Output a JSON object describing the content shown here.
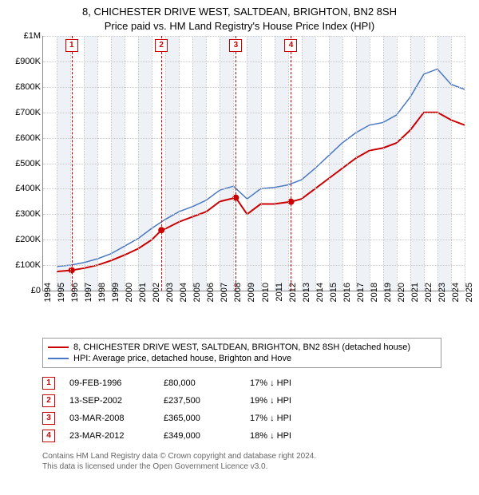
{
  "title_line1": "8, CHICHESTER DRIVE WEST, SALTDEAN, BRIGHTON, BN2 8SH",
  "title_line2": "Price paid vs. HM Land Registry's House Price Index (HPI)",
  "chart": {
    "type": "line",
    "x_start_year": 1994,
    "x_end_year": 2025,
    "x_tick_step": 1,
    "ylim": [
      0,
      1000000
    ],
    "ytick_step": 100000,
    "yticks": [
      "£0",
      "£100K",
      "£200K",
      "£300K",
      "£400K",
      "£500K",
      "£600K",
      "£700K",
      "£800K",
      "£900K",
      "£1M"
    ],
    "background_color": "#ffffff",
    "alt_band_color": "#eef2f7",
    "grid_color": "#c9c9c9",
    "axis_color": "#888888",
    "series": [
      {
        "name": "property",
        "label": "8, CHICHESTER DRIVE WEST, SALTDEAN, BRIGHTON, BN2 8SH (detached house)",
        "color": "#cc0000",
        "line_width": 2,
        "points": [
          [
            1995.0,
            75000
          ],
          [
            1996.1,
            80000
          ],
          [
            1997.0,
            88000
          ],
          [
            1998.0,
            100000
          ],
          [
            1999.0,
            118000
          ],
          [
            2000.0,
            140000
          ],
          [
            2001.0,
            165000
          ],
          [
            2002.0,
            200000
          ],
          [
            2002.7,
            237500
          ],
          [
            2003.0,
            243000
          ],
          [
            2004.0,
            270000
          ],
          [
            2005.0,
            290000
          ],
          [
            2006.0,
            310000
          ],
          [
            2007.0,
            350000
          ],
          [
            2008.17,
            365000
          ],
          [
            2009.0,
            300000
          ],
          [
            2010.0,
            340000
          ],
          [
            2011.0,
            340000
          ],
          [
            2012.23,
            349000
          ],
          [
            2013.0,
            360000
          ],
          [
            2014.0,
            400000
          ],
          [
            2015.0,
            440000
          ],
          [
            2016.0,
            480000
          ],
          [
            2017.0,
            520000
          ],
          [
            2018.0,
            550000
          ],
          [
            2019.0,
            560000
          ],
          [
            2020.0,
            580000
          ],
          [
            2021.0,
            630000
          ],
          [
            2022.0,
            700000
          ],
          [
            2023.0,
            700000
          ],
          [
            2024.0,
            670000
          ],
          [
            2025.0,
            650000
          ]
        ]
      },
      {
        "name": "hpi",
        "label": "HPI: Average price, detached house, Brighton and Hove",
        "color": "#4a78c4",
        "line_width": 1.5,
        "points": [
          [
            1995.0,
            95000
          ],
          [
            1996.0,
            100000
          ],
          [
            1997.0,
            110000
          ],
          [
            1998.0,
            125000
          ],
          [
            1999.0,
            145000
          ],
          [
            2000.0,
            175000
          ],
          [
            2001.0,
            205000
          ],
          [
            2002.0,
            245000
          ],
          [
            2003.0,
            280000
          ],
          [
            2004.0,
            310000
          ],
          [
            2005.0,
            330000
          ],
          [
            2006.0,
            355000
          ],
          [
            2007.0,
            395000
          ],
          [
            2008.0,
            410000
          ],
          [
            2009.0,
            360000
          ],
          [
            2010.0,
            400000
          ],
          [
            2011.0,
            405000
          ],
          [
            2012.0,
            415000
          ],
          [
            2013.0,
            435000
          ],
          [
            2014.0,
            480000
          ],
          [
            2015.0,
            530000
          ],
          [
            2016.0,
            580000
          ],
          [
            2017.0,
            620000
          ],
          [
            2018.0,
            650000
          ],
          [
            2019.0,
            660000
          ],
          [
            2020.0,
            690000
          ],
          [
            2021.0,
            760000
          ],
          [
            2022.0,
            850000
          ],
          [
            2023.0,
            870000
          ],
          [
            2024.0,
            810000
          ],
          [
            2025.0,
            790000
          ]
        ]
      }
    ],
    "marker_color": "#cc0000",
    "markers": [
      {
        "n": "1",
        "year": 1996.1,
        "date": "09-FEB-1996",
        "price": "£80,000",
        "pct": "17% ↓ HPI",
        "value": 80000
      },
      {
        "n": "2",
        "year": 2002.7,
        "date": "13-SEP-2002",
        "price": "£237,500",
        "pct": "19% ↓ HPI",
        "value": 237500
      },
      {
        "n": "3",
        "year": 2008.17,
        "date": "03-MAR-2008",
        "price": "£365,000",
        "pct": "17% ↓ HPI",
        "value": 365000
      },
      {
        "n": "4",
        "year": 2012.23,
        "date": "23-MAR-2012",
        "price": "£349,000",
        "pct": "18% ↓ HPI",
        "value": 349000
      }
    ]
  },
  "footer_line1": "Contains HM Land Registry data © Crown copyright and database right 2024.",
  "footer_line2": "This data is licensed under the Open Government Licence v3.0."
}
